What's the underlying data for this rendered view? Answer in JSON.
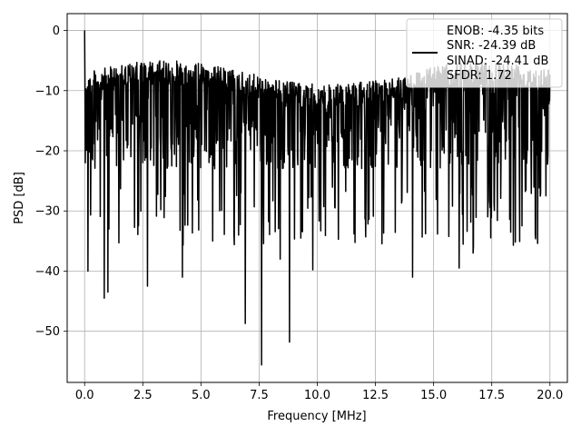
{
  "chart_data": {
    "type": "line",
    "xlabel": "Frequency [MHz]",
    "ylabel": "PSD [dB]",
    "xlim": [
      -0.75,
      20.75
    ],
    "ylim": [
      -58.5,
      2.8
    ],
    "xticks": [
      0.0,
      2.5,
      5.0,
      7.5,
      10.0,
      12.5,
      15.0,
      17.5,
      20.0
    ],
    "xtick_labels": [
      "0.0",
      "2.5",
      "5.0",
      "7.5",
      "10.0",
      "12.5",
      "15.0",
      "17.5",
      "20.0"
    ],
    "yticks": [
      0,
      -10,
      -20,
      -30,
      -40,
      -50
    ],
    "ytick_labels": [
      "0",
      "−10",
      "−20",
      "−30",
      "−40",
      "−50"
    ],
    "grid": true,
    "legend_position": "top-right",
    "series": [
      {
        "name": "ENOB: -4.35 bits\nSNR: -24.39 dB\nSINAD: -24.41 dB\nSFDR: 1.72",
        "legend_lines": [
          "ENOB: -4.35 bits",
          "SNR: -24.39 dB",
          "SINAD: -24.41 dB",
          "SFDR: 1.72"
        ],
        "color": "#000000",
        "x_range": [
          0.0,
          20.0
        ],
        "typical_band_db": [
          -23,
          -7
        ],
        "peak_at_dc_db": 0,
        "notable_dips": [
          {
            "x": 0.85,
            "y": -44.5
          },
          {
            "x": 1.0,
            "y": -43.5
          },
          {
            "x": 0.15,
            "y": -40.0
          },
          {
            "x": 2.7,
            "y": -42.5
          },
          {
            "x": 4.2,
            "y": -41.0
          },
          {
            "x": 5.5,
            "y": -35.0
          },
          {
            "x": 6.9,
            "y": -48.7
          },
          {
            "x": 7.6,
            "y": -55.6
          },
          {
            "x": 8.4,
            "y": -38.0
          },
          {
            "x": 8.8,
            "y": -51.8
          },
          {
            "x": 9.8,
            "y": -39.8
          },
          {
            "x": 14.1,
            "y": -41.0
          },
          {
            "x": 16.1,
            "y": -39.5
          },
          {
            "x": 16.7,
            "y": -37.0
          }
        ]
      }
    ]
  }
}
